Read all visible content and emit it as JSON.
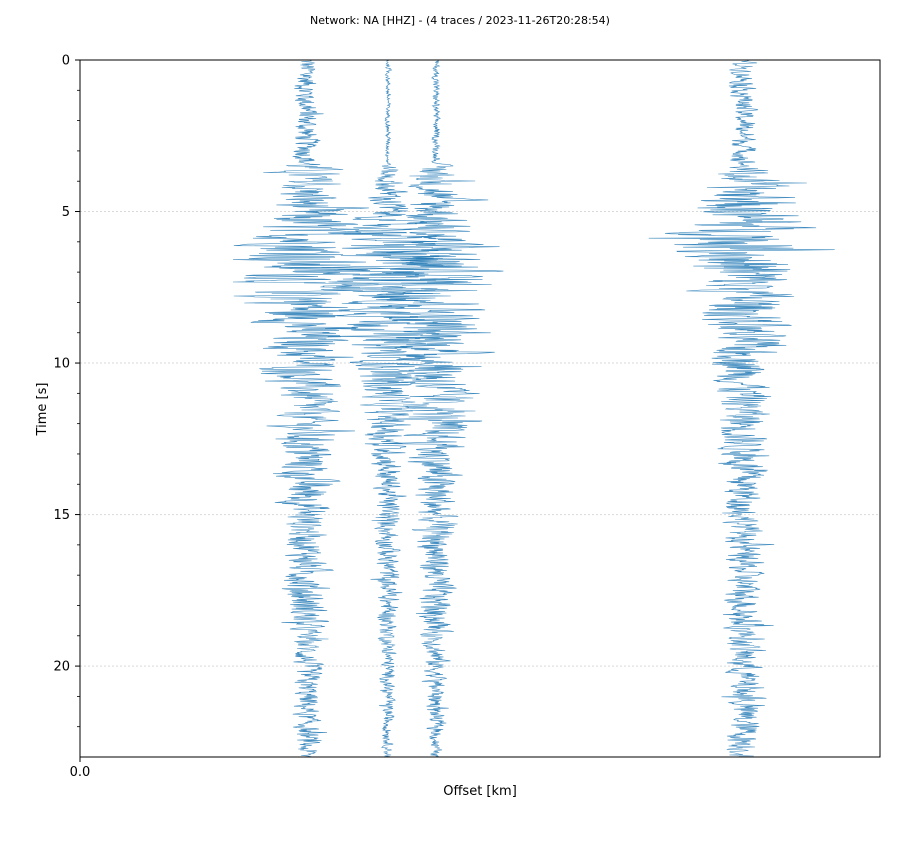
{
  "chart_data": {
    "type": "line",
    "title": "Network: NA [HHZ] - (4 traces / 2023-11-26T20:28:54)",
    "xlabel": "Offset [km]",
    "ylabel": "Time [s]",
    "x_tick_labels": [
      "0.0"
    ],
    "y_ticks": [
      0,
      5,
      10,
      15,
      20
    ],
    "y_minor_ticks": [
      1,
      2,
      3,
      4,
      6,
      7,
      8,
      9,
      11,
      12,
      13,
      14,
      16,
      17,
      18,
      19,
      21,
      22
    ],
    "ylim": [
      23,
      0
    ],
    "y_inverted": true,
    "grid": "horizontal",
    "color": "#1f77b4",
    "series": [
      {
        "center_fraction": 0.283,
        "envelope": [
          [
            0,
            0.02
          ],
          [
            3.3,
            0.022
          ],
          [
            3.5,
            0.055
          ],
          [
            4.5,
            0.05
          ],
          [
            5.5,
            0.09
          ],
          [
            7.3,
            0.11
          ],
          [
            9.5,
            0.065
          ],
          [
            11.0,
            0.05
          ],
          [
            14.5,
            0.045
          ],
          [
            16.0,
            0.03
          ],
          [
            17.5,
            0.04
          ],
          [
            19.0,
            0.025
          ],
          [
            23,
            0.02
          ]
        ]
      },
      {
        "center_fraction": 0.385,
        "envelope": [
          [
            0,
            0.004
          ],
          [
            3.4,
            0.004
          ],
          [
            3.6,
            0.02
          ],
          [
            5.0,
            0.04
          ],
          [
            6.5,
            0.11
          ],
          [
            8.0,
            0.08
          ],
          [
            11.0,
            0.045
          ],
          [
            14.0,
            0.022
          ],
          [
            17.0,
            0.02
          ],
          [
            20.0,
            0.012
          ],
          [
            23,
            0.008
          ]
        ]
      },
      {
        "center_fraction": 0.445,
        "envelope": [
          [
            0,
            0.006
          ],
          [
            3.4,
            0.006
          ],
          [
            3.6,
            0.04
          ],
          [
            5.5,
            0.06
          ],
          [
            7.5,
            0.11
          ],
          [
            9.0,
            0.07
          ],
          [
            11.0,
            0.065
          ],
          [
            13.5,
            0.04
          ],
          [
            16.0,
            0.03
          ],
          [
            18.0,
            0.028
          ],
          [
            20.0,
            0.02
          ],
          [
            23,
            0.008
          ]
        ]
      },
      {
        "center_fraction": 0.83,
        "envelope": [
          [
            0,
            0.02
          ],
          [
            3.5,
            0.02
          ],
          [
            3.7,
            0.05
          ],
          [
            5.5,
            0.11
          ],
          [
            6.5,
            0.11
          ],
          [
            8.5,
            0.07
          ],
          [
            10.0,
            0.05
          ],
          [
            13.0,
            0.04
          ],
          [
            15.0,
            0.03
          ],
          [
            23,
            0.028
          ]
        ]
      }
    ]
  }
}
